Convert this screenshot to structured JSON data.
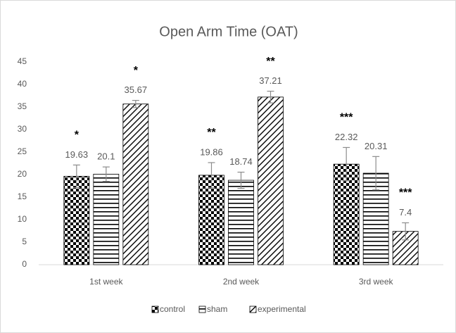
{
  "chart_data": {
    "type": "bar",
    "title": "Open Arm Time (OAT)",
    "categories": [
      "1st week",
      "2nd week",
      "3rd week"
    ],
    "series": [
      {
        "name": "control",
        "color": "#000000",
        "pattern": "checker",
        "values": [
          19.63,
          19.86,
          22.32
        ],
        "errors": [
          2.5,
          2.8,
          3.7
        ],
        "significance": [
          "*",
          "**",
          "***"
        ]
      },
      {
        "name": "sham",
        "color": "#000000",
        "pattern": "horizontal",
        "values": [
          20.1,
          18.74,
          20.31
        ],
        "errors": [
          1.6,
          1.8,
          3.7
        ]
      },
      {
        "name": "experimental",
        "color": "#000000",
        "pattern": "diagonal",
        "values": [
          35.67,
          37.21,
          7.4
        ],
        "errors": [
          0.8,
          1.3,
          1.9
        ],
        "significance": [
          "*",
          "**",
          "***"
        ]
      }
    ],
    "ylim": [
      0,
      45
    ],
    "yticks": [
      0,
      5,
      10,
      15,
      20,
      25,
      30,
      35,
      40,
      45
    ],
    "grid": false,
    "legend": "bottom"
  }
}
